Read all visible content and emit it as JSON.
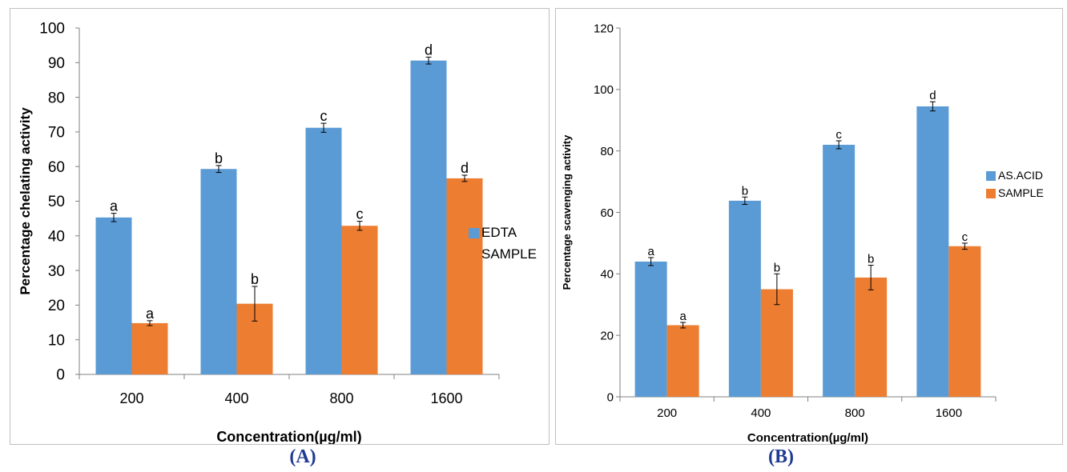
{
  "panel_labels": {
    "a": "(A)",
    "b": "(B)"
  },
  "colors": {
    "series1": "#5b9bd5",
    "series2": "#ed7d31",
    "panel_label": "#1f3a93"
  },
  "chart_data": [
    {
      "type": "bar",
      "xlabel": "Concentration(µg/ml)",
      "ylabel": "Percentage chelating activity",
      "ylim": [
        0,
        100
      ],
      "yticks": [
        0,
        10,
        20,
        30,
        40,
        50,
        60,
        70,
        80,
        90,
        100
      ],
      "categories": [
        "200",
        "400",
        "800",
        "1600"
      ],
      "legend_position": "right",
      "series": [
        {
          "name": "EDTA",
          "values": [
            45.3,
            59.3,
            71.2,
            90.6
          ],
          "errors": [
            1.2,
            1.0,
            1.3,
            1.0
          ],
          "letters": [
            "a",
            "b",
            "c",
            "d"
          ]
        },
        {
          "name": "SAMPLE",
          "values": [
            14.8,
            20.4,
            42.9,
            56.6
          ],
          "errors": [
            0.7,
            5.0,
            1.3,
            0.9
          ],
          "letters": [
            "a",
            "b",
            "c",
            "d"
          ]
        }
      ]
    },
    {
      "type": "bar",
      "xlabel": "Concentration(µg/ml)",
      "ylabel": "Percentage scavenging activity",
      "ylim": [
        0,
        120
      ],
      "yticks": [
        0,
        20,
        40,
        60,
        80,
        100,
        120
      ],
      "categories": [
        "200",
        "400",
        "800",
        "1600"
      ],
      "legend_position": "right",
      "series": [
        {
          "name": "AS.ACID",
          "values": [
            44.0,
            63.8,
            82.0,
            94.5
          ],
          "errors": [
            1.3,
            1.2,
            1.3,
            1.5
          ],
          "letters": [
            "a",
            "b",
            "c",
            "d"
          ]
        },
        {
          "name": "SAMPLE",
          "values": [
            23.3,
            35.0,
            38.8,
            49.0
          ],
          "errors": [
            0.9,
            5.0,
            4.0,
            1.0
          ],
          "letters": [
            "a",
            "b",
            "b",
            "c"
          ]
        }
      ]
    }
  ]
}
